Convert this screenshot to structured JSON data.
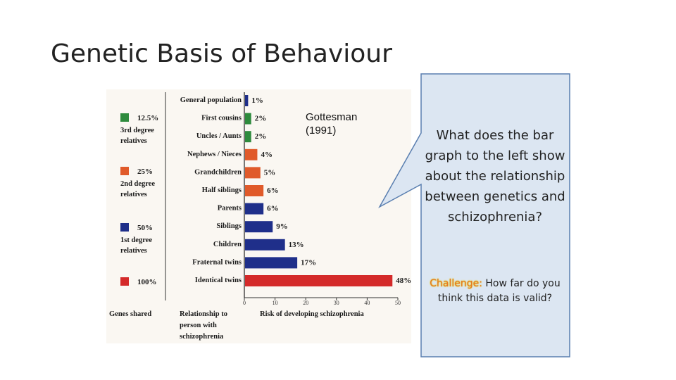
{
  "slide": {
    "title": "Genetic Basis of Behaviour",
    "citation": "Gottesman (1991)",
    "citation_lines": [
      "Gottesman",
      "(1991)"
    ],
    "callout": {
      "question": "What does the bar graph to the left show about the relationship between genetics and schizophrenia?",
      "challenge_label": "Challenge:",
      "challenge_text": " How far do you think this data is valid?"
    }
  },
  "colors": {
    "green": "#2e8b3d",
    "orange": "#e05a2a",
    "navy": "#1f2f8a",
    "red": "#d42a2a",
    "callout_fill": "#dce6f2",
    "callout_stroke": "#5a7fb0"
  },
  "chart_data": {
    "type": "bar",
    "orientation": "horizontal",
    "xlabel": "Risk of developing schizophrenia",
    "ylabel": "Relationship to person with schizophrenia",
    "ylabel_lines": [
      "Relationship to",
      "person with",
      "schizophrenia"
    ],
    "genes_shared_label": "Genes shared",
    "xlim": [
      0,
      50
    ],
    "xticks": [
      0,
      10,
      20,
      30,
      40,
      50
    ],
    "categories": [
      "General population",
      "First cousins",
      "Uncles / Aunts",
      "Nephews / Nieces",
      "Grandchildren",
      "Half siblings",
      "Parents",
      "Siblings",
      "Children",
      "Fraternal twins",
      "Identical twins"
    ],
    "values": [
      1,
      2,
      2,
      4,
      5,
      6,
      6,
      9,
      13,
      17,
      48
    ],
    "value_labels": [
      "1%",
      "2%",
      "2%",
      "4%",
      "5%",
      "6%",
      "6%",
      "9%",
      "13%",
      "17%",
      "48%"
    ],
    "bar_groups": [
      "navy",
      "green",
      "green",
      "orange",
      "orange",
      "orange",
      "navy",
      "navy",
      "navy",
      "navy",
      "red"
    ],
    "legend": [
      {
        "percent": "12.5%",
        "lines": [
          "3rd degree",
          "relatives"
        ],
        "color": "green"
      },
      {
        "percent": "25%",
        "lines": [
          "2nd degree",
          "relatives"
        ],
        "color": "orange"
      },
      {
        "percent": "50%",
        "lines": [
          "1st degree",
          "relatives"
        ],
        "color": "navy"
      },
      {
        "percent": "100%",
        "lines": [],
        "color": "red"
      }
    ]
  }
}
